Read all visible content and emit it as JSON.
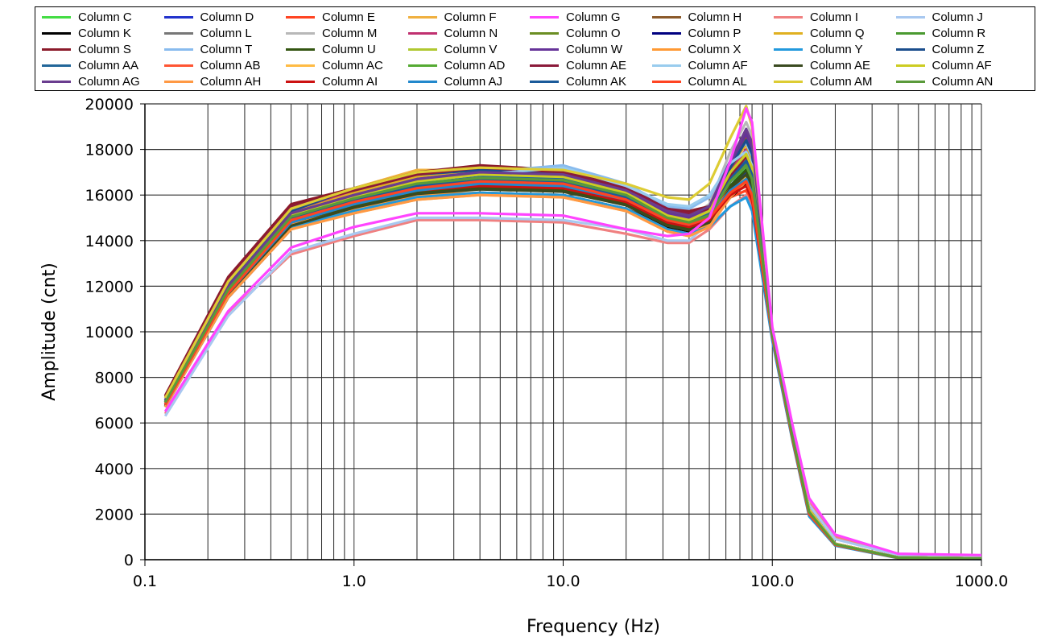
{
  "chart_data": {
    "type": "line",
    "xlabel": "Frequency (Hz)",
    "ylabel": "Amplitude  (cnt)",
    "xscale": "log",
    "xlim": [
      0.1,
      1000
    ],
    "ylim": [
      0,
      20000
    ],
    "grid": true,
    "legend_position": "top",
    "x_tick_labels": [
      "0.1",
      "1.0",
      "10.0",
      "100.0",
      "1000.0"
    ],
    "x_tick_values": [
      0.1,
      1,
      10,
      100,
      1000
    ],
    "y_tick_labels": [
      "0",
      "2000",
      "4000",
      "6000",
      "8000",
      "10000",
      "12000",
      "14000",
      "16000",
      "18000",
      "20000"
    ],
    "y_tick_values": [
      0,
      2000,
      4000,
      6000,
      8000,
      10000,
      12000,
      14000,
      16000,
      18000,
      20000
    ],
    "x": [
      0.125,
      0.25,
      0.5,
      1,
      2,
      4,
      10,
      20,
      31.5,
      40,
      50,
      63,
      75,
      80,
      100,
      125,
      150,
      200,
      400,
      1000
    ],
    "series": [
      {
        "name": "Column C",
        "color": "#44dd44",
        "values": [
          6900,
          11900,
          15100,
          15800,
          16500,
          16800,
          16600,
          16000,
          15100,
          14900,
          15200,
          16500,
          17200,
          16500,
          10000,
          5600,
          2200,
          700,
          100,
          60
        ]
      },
      {
        "name": "Column D",
        "color": "#2233cc",
        "values": [
          6800,
          11700,
          14800,
          15500,
          16200,
          16400,
          16300,
          15800,
          14900,
          14700,
          15000,
          16400,
          17000,
          16300,
          9800,
          5400,
          2000,
          650,
          80,
          40
        ]
      },
      {
        "name": "Column E",
        "color": "#ff4422",
        "values": [
          6750,
          11600,
          14700,
          15400,
          16100,
          16300,
          16200,
          15700,
          14800,
          14500,
          14800,
          15900,
          16200,
          15600,
          9700,
          5300,
          2000,
          650,
          80,
          40
        ]
      },
      {
        "name": "Column F",
        "color": "#f0b040",
        "values": [
          7100,
          12200,
          15400,
          16300,
          17100,
          17100,
          17000,
          16400,
          15300,
          15100,
          15400,
          16900,
          17600,
          16900,
          10100,
          5600,
          2200,
          700,
          100,
          60
        ]
      },
      {
        "name": "Column G",
        "color": "#ff44ff",
        "values": [
          6500,
          10900,
          13700,
          14600,
          15200,
          15200,
          15100,
          14500,
          14200,
          14300,
          15000,
          17500,
          19800,
          19200,
          10200,
          5900,
          2700,
          1100,
          260,
          200
        ]
      },
      {
        "name": "Column H",
        "color": "#8b5a2b",
        "values": [
          6900,
          11800,
          15000,
          16000,
          16700,
          16900,
          16800,
          16100,
          15100,
          14500,
          15000,
          17000,
          18500,
          17800,
          10000,
          5500,
          2200,
          700,
          100,
          60
        ]
      },
      {
        "name": "Column I",
        "color": "#f08080",
        "values": [
          6400,
          10800,
          13400,
          14200,
          14900,
          14900,
          14800,
          14300,
          13900,
          13900,
          14500,
          15500,
          16000,
          15400,
          9900,
          5700,
          2500,
          1000,
          230,
          170
        ]
      },
      {
        "name": "Column J",
        "color": "#a8c8f0",
        "values": [
          6300,
          10700,
          13500,
          14300,
          15000,
          15000,
          14900,
          14500,
          14000,
          14000,
          14800,
          16500,
          17800,
          17200,
          10000,
          5600,
          2400,
          900,
          200,
          150
        ]
      },
      {
        "name": "Column K",
        "color": "#000000",
        "values": [
          6700,
          11500,
          14500,
          15300,
          15900,
          16100,
          16000,
          15400,
          14600,
          14400,
          14700,
          15900,
          16500,
          15900,
          9800,
          5300,
          2000,
          650,
          80,
          40
        ]
      },
      {
        "name": "Column L",
        "color": "#777777",
        "values": [
          6900,
          11800,
          15000,
          15800,
          16600,
          16900,
          16800,
          16000,
          15000,
          14800,
          15300,
          17500,
          18800,
          18200,
          10000,
          5500,
          2200,
          700,
          100,
          60
        ]
      },
      {
        "name": "Column M",
        "color": "#b8b8b8",
        "values": [
          7000,
          11900,
          15100,
          16000,
          16700,
          17000,
          16900,
          16200,
          15200,
          15000,
          15600,
          17900,
          19200,
          18600,
          10100,
          5500,
          2200,
          700,
          100,
          60
        ]
      },
      {
        "name": "Column N",
        "color": "#c03070",
        "values": [
          7100,
          12100,
          15300,
          16200,
          16900,
          17000,
          16900,
          16300,
          15400,
          15200,
          15500,
          17000,
          18000,
          17300,
          10000,
          5500,
          2200,
          700,
          100,
          60
        ]
      },
      {
        "name": "Column O",
        "color": "#6b8e23",
        "values": [
          6800,
          11700,
          14800,
          15700,
          16300,
          16600,
          16500,
          15800,
          14900,
          14700,
          15000,
          16600,
          17400,
          16800,
          9900,
          5400,
          2100,
          680,
          90,
          50
        ]
      },
      {
        "name": "Column P",
        "color": "#000080",
        "values": [
          6900,
          11900,
          15000,
          15900,
          16500,
          16800,
          16600,
          15900,
          14900,
          14700,
          15000,
          16400,
          17100,
          16500,
          9900,
          5400,
          2100,
          680,
          90,
          50
        ]
      },
      {
        "name": "Column Q",
        "color": "#e0b020",
        "values": [
          7000,
          12000,
          15200,
          16100,
          16800,
          17000,
          16900,
          16200,
          15200,
          15000,
          15500,
          17300,
          18200,
          17600,
          10000,
          5500,
          2200,
          700,
          100,
          60
        ]
      },
      {
        "name": "Column R",
        "color": "#4a9a30",
        "values": [
          6900,
          11900,
          15100,
          15900,
          16600,
          16800,
          16700,
          16000,
          15000,
          14800,
          15100,
          16700,
          17500,
          16900,
          9900,
          5400,
          2100,
          680,
          90,
          50
        ]
      },
      {
        "name": "Column S",
        "color": "#8b1a2a",
        "values": [
          7200,
          12400,
          15600,
          16300,
          17000,
          17300,
          17100,
          16400,
          15500,
          15300,
          15500,
          16900,
          17800,
          17100,
          10000,
          5500,
          2200,
          700,
          100,
          60
        ]
      },
      {
        "name": "Column T",
        "color": "#88bbee",
        "values": [
          6900,
          11800,
          15100,
          16000,
          16700,
          17000,
          17300,
          16500,
          15500,
          15400,
          15900,
          17500,
          18300,
          17700,
          10000,
          5500,
          2200,
          700,
          100,
          60
        ]
      },
      {
        "name": "Column U",
        "color": "#335511",
        "values": [
          6750,
          11600,
          14700,
          15500,
          16100,
          16300,
          16200,
          15600,
          14700,
          14500,
          14900,
          16400,
          17100,
          16500,
          9800,
          5300,
          2000,
          650,
          80,
          40
        ]
      },
      {
        "name": "Column V",
        "color": "#b0c830",
        "values": [
          6850,
          11750,
          14950,
          15750,
          16400,
          16700,
          16600,
          15900,
          14900,
          14700,
          15100,
          16700,
          17500,
          16900,
          9900,
          5400,
          2100,
          680,
          90,
          50
        ]
      },
      {
        "name": "Column W",
        "color": "#663399",
        "values": [
          7000,
          12000,
          15200,
          16000,
          16700,
          17000,
          16900,
          16200,
          15200,
          15000,
          15400,
          17300,
          18700,
          18000,
          10000,
          5500,
          2200,
          700,
          100,
          60
        ]
      },
      {
        "name": "Column X",
        "color": "#ff9933",
        "values": [
          6800,
          11600,
          14700,
          15400,
          16000,
          16100,
          16000,
          15400,
          14500,
          14300,
          14700,
          16000,
          16700,
          16100,
          9800,
          5300,
          2000,
          650,
          80,
          40
        ]
      },
      {
        "name": "Column Y",
        "color": "#2299dd",
        "values": [
          6700,
          11500,
          14600,
          15300,
          15900,
          16100,
          16000,
          15400,
          14500,
          14300,
          14600,
          15500,
          15900,
          15300,
          9600,
          5200,
          1900,
          620,
          70,
          30
        ]
      },
      {
        "name": "Column Z",
        "color": "#1a4d8c",
        "values": [
          7000,
          12100,
          15300,
          16300,
          16900,
          17100,
          17000,
          16300,
          15300,
          15100,
          15500,
          17200,
          18400,
          17800,
          10000,
          5500,
          2200,
          700,
          100,
          60
        ]
      },
      {
        "name": "Column AA",
        "color": "#226699",
        "values": [
          6950,
          11950,
          15150,
          15950,
          16600,
          16800,
          16700,
          16000,
          15000,
          14800,
          15200,
          16900,
          17800,
          17200,
          9900,
          5400,
          2100,
          680,
          90,
          50
        ]
      },
      {
        "name": "Column AB",
        "color": "#ff5533",
        "values": [
          6850,
          11800,
          14900,
          15700,
          16300,
          16500,
          16400,
          15800,
          14900,
          14700,
          15000,
          16300,
          16800,
          16200,
          9800,
          5300,
          2000,
          650,
          80,
          40
        ]
      },
      {
        "name": "Column AC",
        "color": "#ffbb44",
        "values": [
          6800,
          11600,
          14500,
          15200,
          15800,
          16000,
          15900,
          15300,
          14400,
          14200,
          14600,
          16000,
          16800,
          16200,
          9800,
          5300,
          2000,
          650,
          80,
          40
        ]
      },
      {
        "name": "Column AD",
        "color": "#55aa33",
        "values": [
          6900,
          11850,
          15050,
          15850,
          16500,
          16750,
          16650,
          16000,
          15000,
          14800,
          15100,
          16600,
          17300,
          16700,
          9900,
          5400,
          2100,
          680,
          90,
          50
        ]
      },
      {
        "name": "Column AE",
        "color": "#8b1a3a",
        "values": [
          7150,
          12300,
          15500,
          16200,
          16900,
          17200,
          17000,
          16300,
          15400,
          15200,
          15400,
          16800,
          17700,
          17000,
          10000,
          5500,
          2200,
          700,
          100,
          60
        ]
      },
      {
        "name": "Column AF",
        "color": "#99ccee",
        "values": [
          6900,
          11800,
          15000,
          15900,
          16600,
          16900,
          17200,
          16400,
          15600,
          15500,
          16000,
          17400,
          17900,
          17300,
          10000,
          5500,
          2200,
          700,
          100,
          60
        ]
      },
      {
        "name": "Column AE",
        "color": "#3a4a20",
        "values": [
          6750,
          11550,
          14650,
          15450,
          16050,
          16250,
          16150,
          15550,
          14650,
          14450,
          14800,
          16300,
          16900,
          16300,
          9800,
          5300,
          2000,
          650,
          80,
          40
        ]
      },
      {
        "name": "Column AF",
        "color": "#cccc22",
        "values": [
          6900,
          11900,
          15100,
          15900,
          16600,
          16900,
          16800,
          16100,
          15100,
          14900,
          15300,
          17000,
          17800,
          17200,
          9900,
          5400,
          2100,
          680,
          90,
          50
        ]
      },
      {
        "name": "Column AG",
        "color": "#6a3d8f",
        "values": [
          7000,
          12000,
          15200,
          16000,
          16700,
          17000,
          16900,
          16200,
          15300,
          15100,
          15500,
          17500,
          18900,
          18300,
          10000,
          5500,
          2200,
          700,
          100,
          60
        ]
      },
      {
        "name": "Column AH",
        "color": "#ff9944",
        "values": [
          6700,
          11500,
          14500,
          15200,
          15800,
          16000,
          15900,
          15300,
          14400,
          14200,
          14600,
          15900,
          16600,
          16000,
          9800,
          5300,
          2000,
          650,
          80,
          40
        ]
      },
      {
        "name": "Column AI",
        "color": "#cc1111",
        "values": [
          6800,
          11700,
          14800,
          15600,
          16200,
          16400,
          16300,
          15700,
          14800,
          14600,
          14900,
          16000,
          16400,
          15800,
          9800,
          5300,
          2000,
          650,
          80,
          40
        ]
      },
      {
        "name": "Column AJ",
        "color": "#2288cc",
        "values": [
          6800,
          11700,
          14800,
          15600,
          16200,
          16500,
          16400,
          15800,
          14900,
          14700,
          15000,
          16200,
          16700,
          16100,
          9800,
          5300,
          2000,
          650,
          80,
          40
        ]
      },
      {
        "name": "Column AK",
        "color": "#1a5a9a",
        "values": [
          6900,
          11800,
          15000,
          15800,
          16400,
          16700,
          16600,
          15900,
          14900,
          14700,
          15100,
          16700,
          17500,
          16900,
          9900,
          5400,
          2100,
          680,
          90,
          50
        ]
      },
      {
        "name": "Column AL",
        "color": "#ff4422",
        "values": [
          6800,
          11700,
          14900,
          15700,
          16300,
          16600,
          16500,
          15800,
          14900,
          14700,
          15000,
          16100,
          16600,
          16000,
          9800,
          5300,
          2000,
          650,
          80,
          40
        ]
      },
      {
        "name": "Column AM",
        "color": "#ddcc33",
        "values": [
          7100,
          12200,
          15400,
          16300,
          17000,
          17200,
          17100,
          16500,
          15900,
          15800,
          16500,
          18500,
          19900,
          19000,
          10100,
          5600,
          2200,
          700,
          100,
          60
        ]
      },
      {
        "name": "Column AN",
        "color": "#5a9a3a",
        "values": [
          6900,
          11850,
          15050,
          15850,
          16500,
          16750,
          16650,
          16000,
          15000,
          14800,
          15100,
          16600,
          17300,
          16700,
          9900,
          5400,
          2100,
          680,
          90,
          50
        ]
      }
    ]
  }
}
